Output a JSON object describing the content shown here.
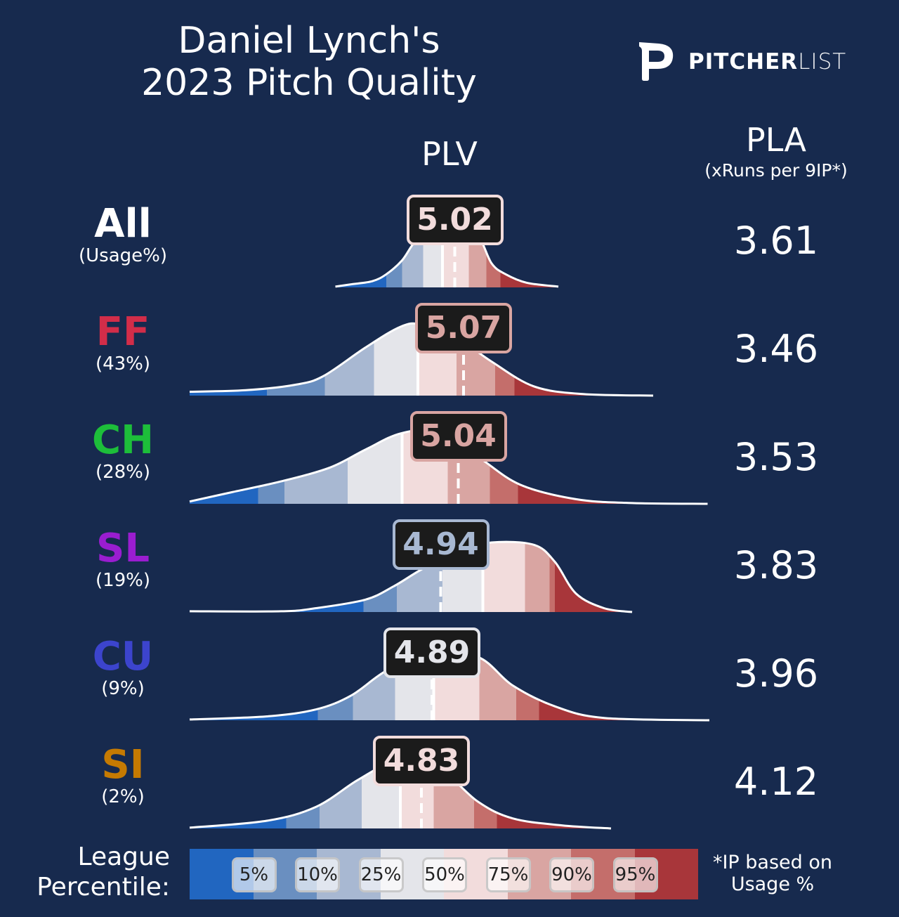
{
  "title": {
    "line1": "Daniel Lynch's",
    "line2": "2023 Pitch Quality"
  },
  "logo": {
    "bold": "PITCHER",
    "light": "LIST"
  },
  "headers": {
    "plv": "PLV",
    "pla": "PLA",
    "pla_sub": "(xRuns per 9IP*)"
  },
  "footnote": {
    "line1": "*IP based on",
    "line2": "Usage %"
  },
  "legend": {
    "label_line1": "League",
    "label_line2": "Percentile:",
    "ticks": [
      "5%",
      "10%",
      "25%",
      "50%",
      "75%",
      "90%",
      "95%"
    ],
    "band_colors": [
      "#2166c0",
      "#6a8fc0",
      "#a8b8d2",
      "#e4e5ea",
      "#f2dcdc",
      "#d9a5a2",
      "#c46e6b",
      "#a8363a"
    ]
  },
  "colors": {
    "background": "#172a4e",
    "outline": "#ffffff",
    "box_bg": "#1b1b1b"
  },
  "chart_data": {
    "type": "ridgeline-density",
    "x_label": "PLV",
    "xlim": [
      3.51,
      6.47
    ],
    "rows": [
      {
        "pitch": "All",
        "usage": "(Usage%)",
        "plv": "5.02",
        "pla": "3.61",
        "label_color": "#ffffff",
        "box_color": "#f2dcdc",
        "percentile_breaks": [
          4.63,
          4.72,
          4.84,
          4.95,
          5.1,
          5.2,
          5.28
        ],
        "density": [
          [
            4.34,
            0.01
          ],
          [
            4.43,
            0.04
          ],
          [
            4.55,
            0.08
          ],
          [
            4.63,
            0.17
          ],
          [
            4.72,
            0.35
          ],
          [
            4.79,
            0.58
          ],
          [
            4.87,
            0.7
          ],
          [
            5.02,
            0.8
          ],
          [
            5.15,
            0.67
          ],
          [
            5.23,
            0.31
          ],
          [
            5.31,
            0.17
          ],
          [
            5.43,
            0.06
          ],
          [
            5.61,
            0.01
          ]
        ]
      },
      {
        "pitch": "FF",
        "usage": "(43%)",
        "plv": "5.07",
        "pla": "3.46",
        "label_color": "#d22d49",
        "box_color": "#d9a5a2",
        "percentile_breaks": [
          3.95,
          4.28,
          4.56,
          4.81,
          5.03,
          5.25,
          5.36
        ],
        "density": [
          [
            3.51,
            0.05
          ],
          [
            3.83,
            0.07
          ],
          [
            4.11,
            0.14
          ],
          [
            4.27,
            0.25
          ],
          [
            4.51,
            0.62
          ],
          [
            4.71,
            0.89
          ],
          [
            4.83,
            0.92
          ],
          [
            5.03,
            0.75
          ],
          [
            5.23,
            0.44
          ],
          [
            5.47,
            0.12
          ],
          [
            5.75,
            0.02
          ],
          [
            6.15,
            0.0
          ]
        ]
      },
      {
        "pitch": "CH",
        "usage": "(28%)",
        "plv": "5.04",
        "pla": "3.53",
        "label_color": "#1dbe3a",
        "box_color": "#d9a5a2",
        "percentile_breaks": [
          3.9,
          4.05,
          4.41,
          4.72,
          4.98,
          5.22,
          5.38
        ],
        "density": [
          [
            3.51,
            0.03
          ],
          [
            3.75,
            0.15
          ],
          [
            4.03,
            0.29
          ],
          [
            4.31,
            0.47
          ],
          [
            4.51,
            0.7
          ],
          [
            4.71,
            0.91
          ],
          [
            4.91,
            0.93
          ],
          [
            5.15,
            0.61
          ],
          [
            5.39,
            0.25
          ],
          [
            5.71,
            0.06
          ],
          [
            6.03,
            0.01
          ],
          [
            6.46,
            0.0
          ]
        ]
      },
      {
        "pitch": "SL",
        "usage": "(19%)",
        "plv": "4.94",
        "pla": "3.83",
        "label_color": "#9a1dd0",
        "box_color": "#a8b8d2",
        "percentile_breaks": [
          4.5,
          4.69,
          4.95,
          5.18,
          5.42,
          5.56,
          5.59
        ],
        "density": [
          [
            3.51,
            0.01
          ],
          [
            4.03,
            0.01
          ],
          [
            4.23,
            0.05
          ],
          [
            4.51,
            0.16
          ],
          [
            4.67,
            0.33
          ],
          [
            4.83,
            0.55
          ],
          [
            5.03,
            0.78
          ],
          [
            5.23,
            0.9
          ],
          [
            5.47,
            0.87
          ],
          [
            5.59,
            0.65
          ],
          [
            5.71,
            0.24
          ],
          [
            5.87,
            0.05
          ],
          [
            6.03,
            0.0
          ]
        ]
      },
      {
        "pitch": "CU",
        "usage": "(9%)",
        "plv": "4.89",
        "pla": "3.96",
        "label_color": "#3c44cd",
        "box_color": "#e4e5ea",
        "percentile_breaks": [
          4.24,
          4.44,
          4.68,
          4.9,
          5.16,
          5.37,
          5.5
        ],
        "density": [
          [
            3.51,
            0.01
          ],
          [
            3.95,
            0.05
          ],
          [
            4.23,
            0.14
          ],
          [
            4.43,
            0.32
          ],
          [
            4.63,
            0.64
          ],
          [
            4.87,
            0.86
          ],
          [
            5.15,
            0.82
          ],
          [
            5.35,
            0.45
          ],
          [
            5.59,
            0.18
          ],
          [
            5.87,
            0.03
          ],
          [
            6.47,
            0.0
          ]
        ]
      },
      {
        "pitch": "SI",
        "usage": "(2%)",
        "plv": "4.83",
        "pla": "4.12",
        "label_color": "#c57a02",
        "box_color": "#f2dcdc",
        "percentile_breaks": [
          4.06,
          4.25,
          4.49,
          4.71,
          4.9,
          5.13,
          5.26
        ],
        "density": [
          [
            3.51,
            0.01
          ],
          [
            3.95,
            0.1
          ],
          [
            4.23,
            0.28
          ],
          [
            4.47,
            0.63
          ],
          [
            4.67,
            0.85
          ],
          [
            4.91,
            0.81
          ],
          [
            5.15,
            0.35
          ],
          [
            5.35,
            0.13
          ],
          [
            5.63,
            0.04
          ],
          [
            5.91,
            0.0
          ]
        ]
      }
    ]
  }
}
